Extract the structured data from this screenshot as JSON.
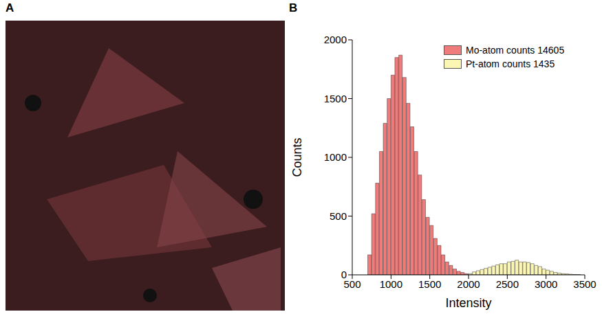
{
  "image_panel": {
    "panel_label": "A"
  },
  "chart_data": {
    "type": "histogram",
    "panel_label": "B",
    "x_label": "Intensity",
    "y_label": "Counts",
    "xlim": [
      500,
      3500
    ],
    "xticks": [
      500,
      1000,
      1500,
      2000,
      2500,
      3000,
      3500
    ],
    "ylim": [
      0,
      2000
    ],
    "yticks": [
      0,
      500,
      1000,
      1500,
      2000
    ],
    "legend": "top-right",
    "series": [
      {
        "name": "Mo-atom counts 14605",
        "color": "#f07b7b",
        "bins": [
          700,
          750,
          800,
          850,
          900,
          950,
          1000,
          1050,
          1100,
          1150,
          1200,
          1250,
          1300,
          1350,
          1400,
          1450,
          1500,
          1550,
          1600,
          1650,
          1700,
          1750,
          1800,
          1850,
          1900,
          1950,
          2000
        ],
        "counts": [
          170,
          520,
          780,
          1050,
          1290,
          1500,
          1700,
          1850,
          1870,
          1680,
          1460,
          1260,
          1050,
          850,
          640,
          490,
          420,
          310,
          250,
          170,
          110,
          80,
          50,
          30,
          20,
          10
        ]
      },
      {
        "name": "Pt-atom counts 1435",
        "color": "#fcf6b4",
        "bins": [
          2000,
          2050,
          2100,
          2150,
          2200,
          2250,
          2300,
          2350,
          2400,
          2450,
          2500,
          2550,
          2600,
          2650,
          2700,
          2750,
          2800,
          2850,
          2900,
          2950,
          3000,
          3050,
          3100,
          3150,
          3200,
          3250,
          3300,
          3350,
          3400,
          3450
        ],
        "counts": [
          10,
          25,
          35,
          45,
          55,
          65,
          75,
          85,
          95,
          95,
          110,
          115,
          125,
          110,
          110,
          105,
          95,
          80,
          70,
          50,
          40,
          30,
          20,
          15,
          10,
          8,
          5,
          3,
          2
        ]
      }
    ]
  }
}
